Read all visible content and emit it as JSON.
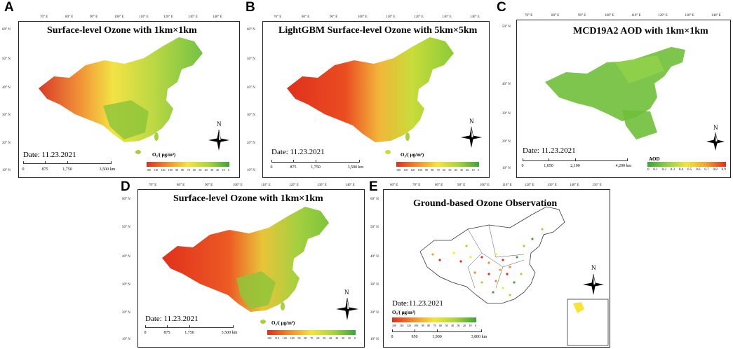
{
  "panels": {
    "A": {
      "letter": "A",
      "title": "Surface-level Ozone with 1km×1km",
      "date": "Date: 11.23.2021",
      "scale": [
        "0",
        "875",
        "1,750",
        "3,500 km"
      ],
      "legend_title": "O₃/( μg/m³)",
      "legend_ticks": [
        "100",
        "110",
        "120",
        "100",
        "90",
        "80",
        "70",
        "60",
        "50",
        "40",
        "30",
        "20",
        "10",
        "0"
      ]
    },
    "B": {
      "letter": "B",
      "title": "LightGBM Surface-level Ozone with 5km×5km",
      "date": "Date: 11.23.2021",
      "scale": [
        "0",
        "875",
        "1,750",
        "3,500 km"
      ],
      "legend_title": "O₃/( μg/m³)",
      "legend_ticks": [
        "100",
        "110",
        "120",
        "100",
        "90",
        "80",
        "70",
        "60",
        "50",
        "40",
        "30",
        "20",
        "10",
        "0"
      ]
    },
    "C": {
      "letter": "C",
      "title": "MCD19A2 AOD with 1km×1km",
      "date": "Date: 11.23.2021",
      "scale": [
        "0",
        "1,050",
        "2,100",
        "4,200 km"
      ],
      "legend_title": "AOD",
      "legend_ticks": [
        "0",
        "0.1",
        "0.2",
        "0.3",
        "0.4",
        "0.5",
        "0.6",
        "0.7",
        "0.8",
        "0.9"
      ]
    },
    "D": {
      "letter": "D",
      "title": "Surface-level Ozone with 1km×1km",
      "date": "Date: 11.23.2021",
      "scale": [
        "0",
        "875",
        "1,750",
        "3,500 km"
      ],
      "legend_title": "O₃/( μg/m³)",
      "legend_ticks": [
        "100",
        "110",
        "120",
        "100",
        "90",
        "80",
        "70",
        "60",
        "50",
        "40",
        "30",
        "20",
        "10",
        "0"
      ]
    },
    "E": {
      "letter": "E",
      "title": "Ground-based Ozone Observation",
      "date": "Date:11.23.2021",
      "scale": [
        "0",
        "950",
        "1,900",
        "3,800 km"
      ],
      "legend_title": "O₃/( μg/m³)",
      "legend_ticks": [
        "100",
        "110",
        "120",
        "100",
        "90",
        "80",
        "70",
        "60",
        "50",
        "40",
        "30",
        "20",
        "10",
        "0"
      ]
    }
  },
  "lon_labels": [
    "70° E",
    "80° E",
    "90° E",
    "100° E",
    "110° E",
    "120° E",
    "130° E",
    "140° E"
  ],
  "lon_labels_c": [
    "70° E",
    "80° E",
    "90° E",
    "100° E",
    "110° E",
    "120° E",
    "130° E",
    "140° E"
  ],
  "lon_labels_e": [
    "60° E",
    "70° E",
    "80° E",
    "90° E",
    "100° E",
    "110° E",
    "120° E",
    "130° E",
    "140° E",
    "150° E"
  ],
  "lat_labels": [
    "60° N",
    "50° N",
    "40° N",
    "30° N",
    "20° N",
    "10° N"
  ],
  "lat_labels_c": [
    "50° N",
    "40° N",
    "30° N",
    "20° N",
    "10° N"
  ],
  "compass_label": "N",
  "colors": {
    "ozone_high": "#e52b1e",
    "ozone_mid": "#f5e43a",
    "ozone_low": "#3aa53a",
    "aod_green": "#6fbf3a",
    "border": "#222222"
  }
}
